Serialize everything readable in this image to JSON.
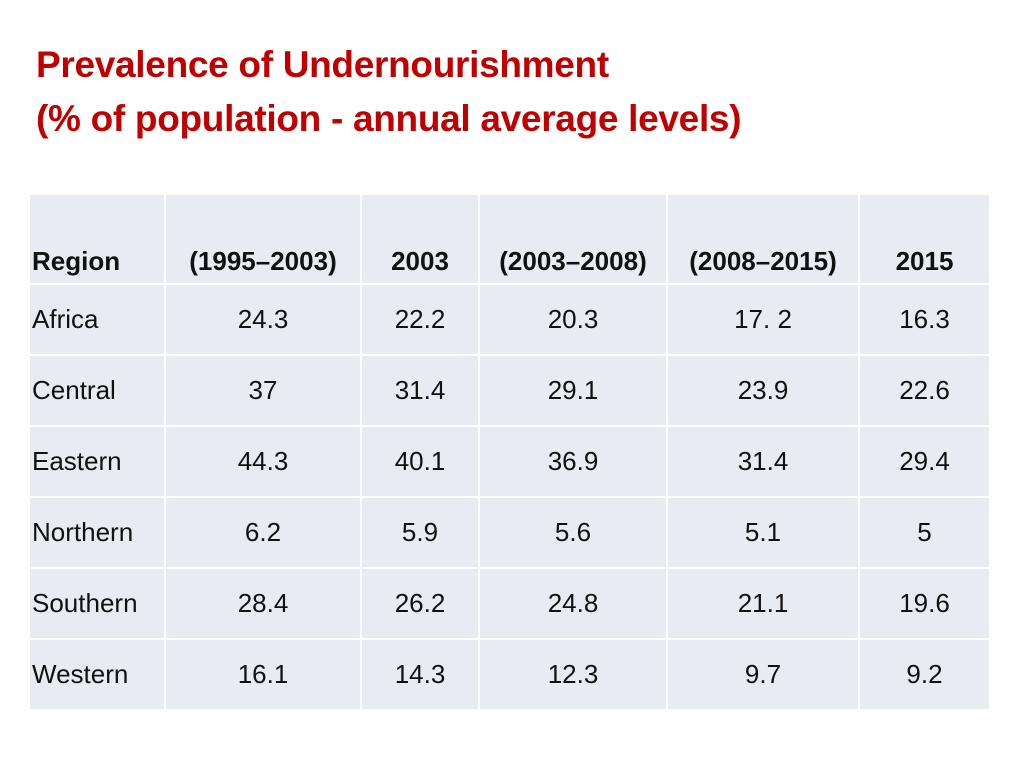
{
  "title": {
    "line1": "Prevalence of Undernourishment",
    "line2": "(% of population - annual average levels)"
  },
  "table": {
    "headers": [
      "Region",
      "(1995–2003)",
      "2003",
      "(2003–2008)",
      "(2008–2015)",
      "2015"
    ],
    "rows": [
      [
        "Africa",
        "24.3",
        "22.2",
        "20.3",
        "17. 2",
        "16.3"
      ],
      [
        "Central",
        "37",
        "31.4",
        "29.1",
        "23.9",
        "22.6"
      ],
      [
        "Eastern",
        "44.3",
        "40.1",
        "36.9",
        "31.4",
        "29.4"
      ],
      [
        "Northern",
        "6.2",
        "5.9",
        "5.6",
        "5.1",
        "5"
      ],
      [
        "Southern",
        "28.4",
        "26.2",
        "24.8",
        "21.1",
        "19.6"
      ],
      [
        "Western",
        "16.1",
        "14.3",
        "12.3",
        "9.7",
        "9.2"
      ]
    ]
  },
  "colors": {
    "title": "#c00000",
    "cell_background": "#e8ebf2",
    "text": "#111111"
  }
}
